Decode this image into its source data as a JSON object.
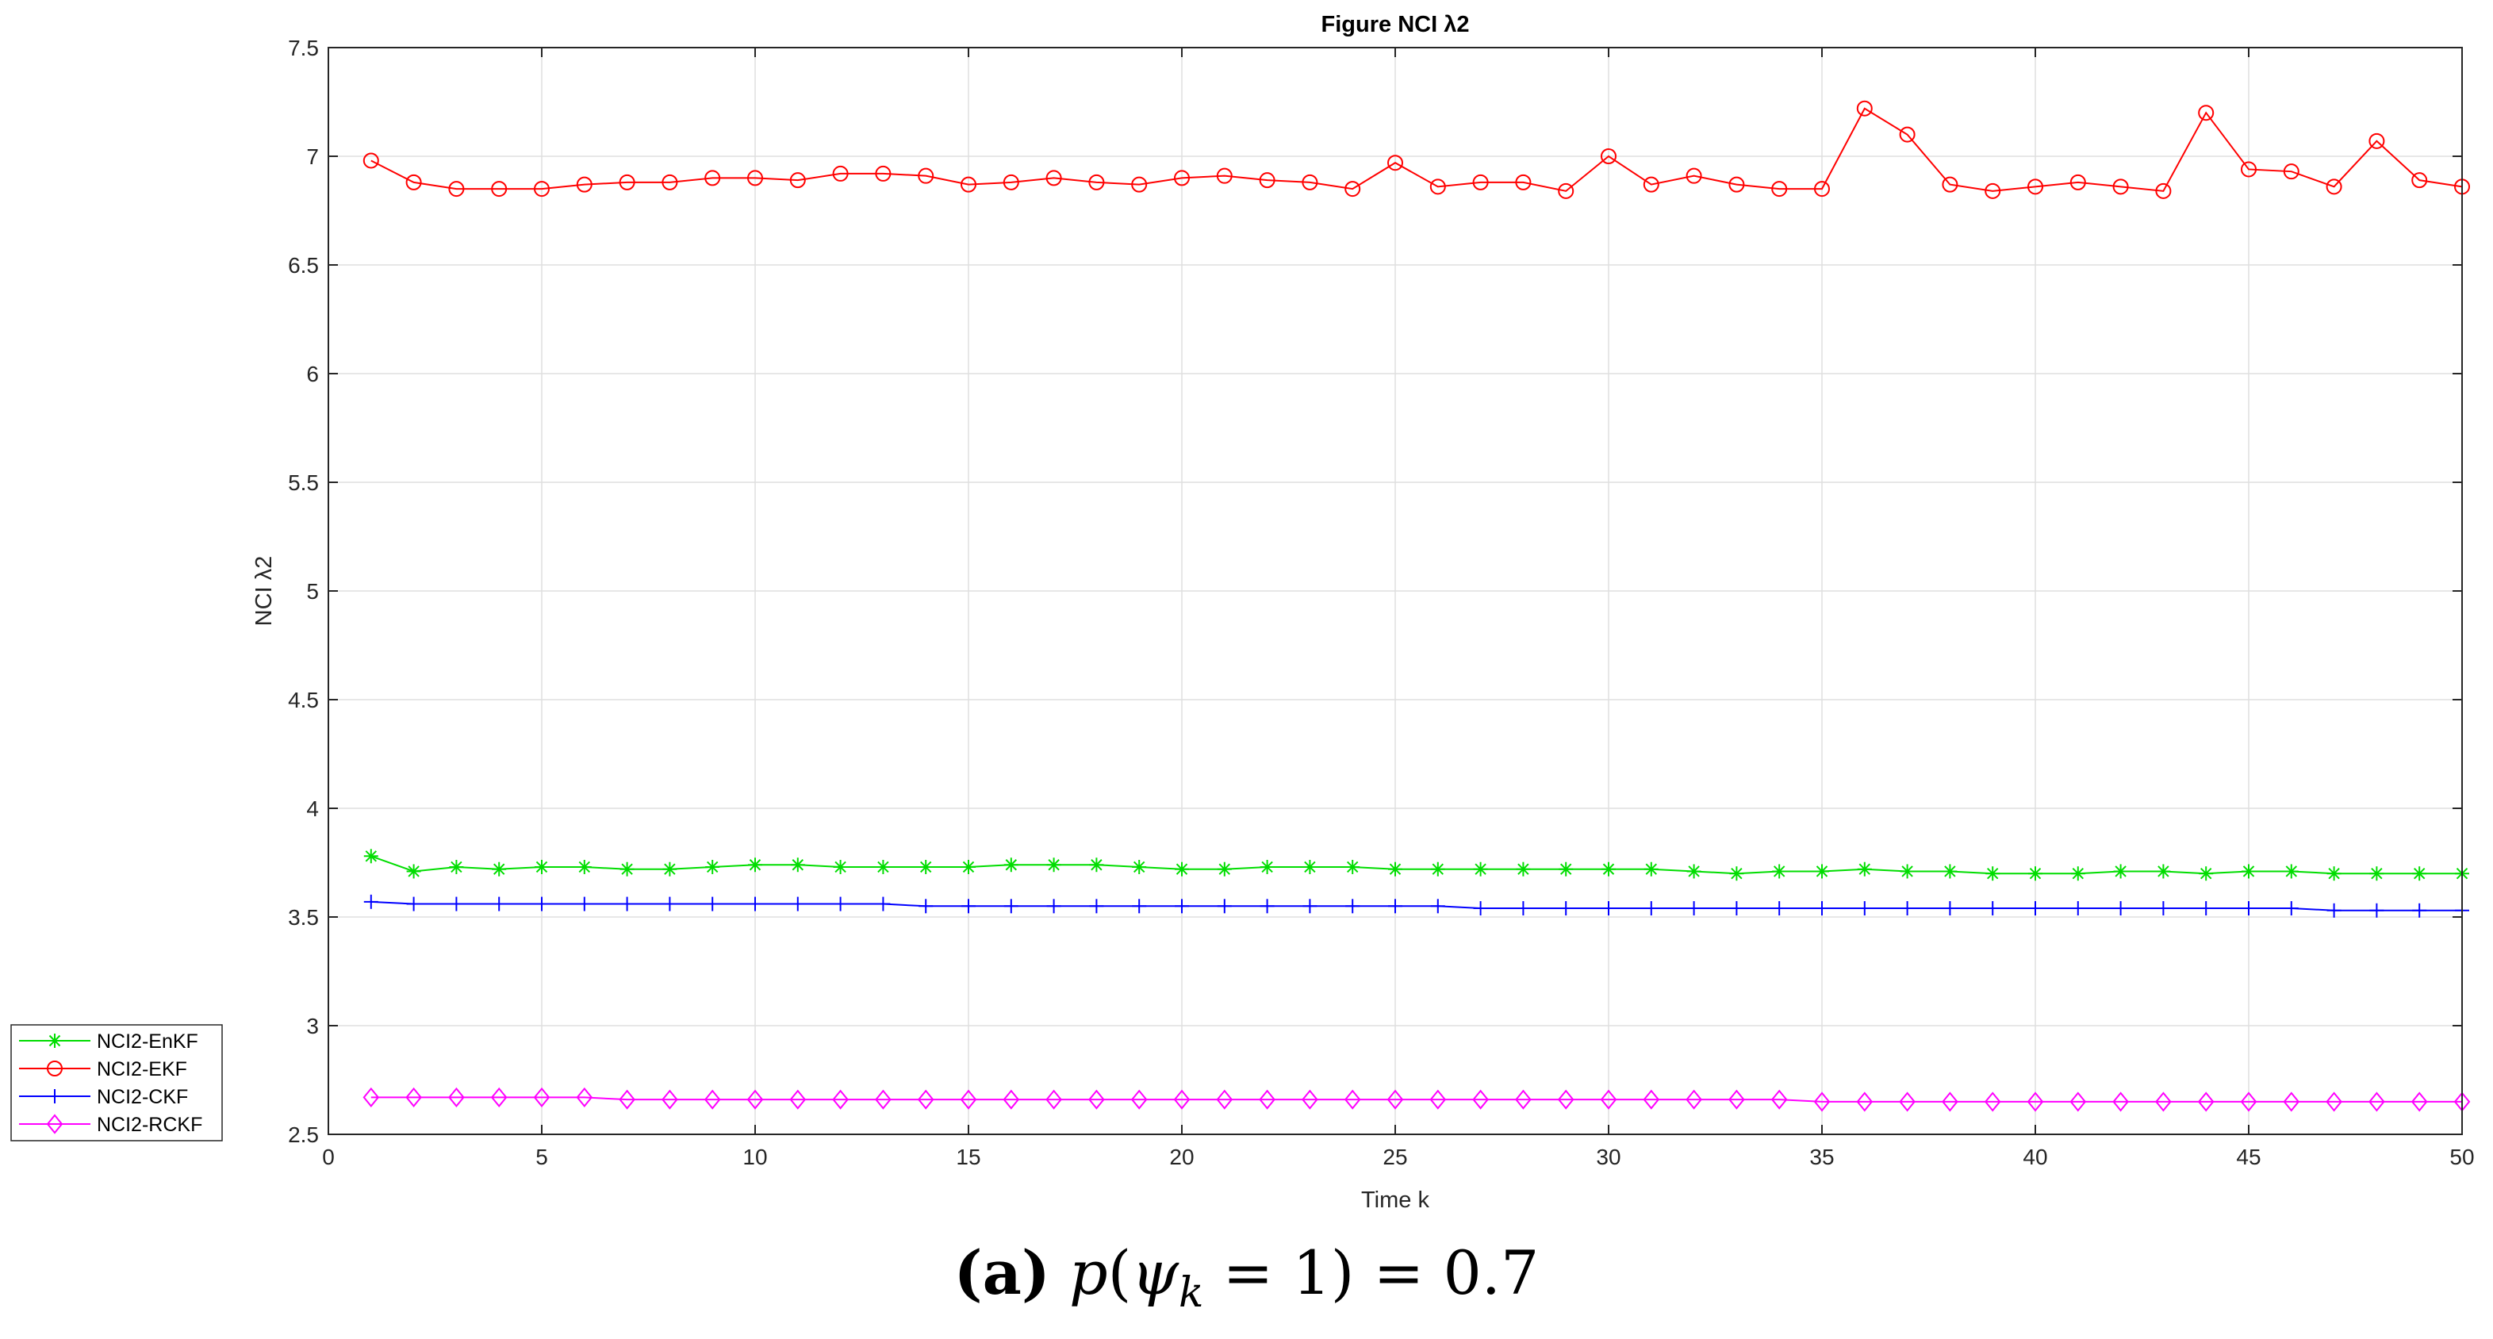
{
  "chart_data": {
    "type": "line",
    "title": "Figure NCI λ2",
    "xlabel": "Time k",
    "ylabel": "NCI λ2",
    "xlim": [
      0,
      50
    ],
    "ylim": [
      2.5,
      7.5
    ],
    "xticks": [
      0,
      5,
      10,
      15,
      20,
      25,
      30,
      35,
      40,
      45,
      50
    ],
    "yticks": [
      2.5,
      3,
      3.5,
      4,
      4.5,
      5,
      5.5,
      6,
      6.5,
      7,
      7.5
    ],
    "grid": true,
    "legend_position": "bottom-left-outside",
    "x": [
      1,
      2,
      3,
      4,
      5,
      6,
      7,
      8,
      9,
      10,
      11,
      12,
      13,
      14,
      15,
      16,
      17,
      18,
      19,
      20,
      21,
      22,
      23,
      24,
      25,
      26,
      27,
      28,
      29,
      30,
      31,
      32,
      33,
      34,
      35,
      36,
      37,
      38,
      39,
      40,
      41,
      42,
      43,
      44,
      45,
      46,
      47,
      48,
      49,
      50
    ],
    "series": [
      {
        "name": "NCI2-EnKF",
        "color": "#00dd00",
        "marker": "asterisk",
        "values": [
          3.78,
          3.71,
          3.73,
          3.72,
          3.73,
          3.73,
          3.72,
          3.72,
          3.73,
          3.74,
          3.74,
          3.73,
          3.73,
          3.73,
          3.73,
          3.74,
          3.74,
          3.74,
          3.73,
          3.72,
          3.72,
          3.73,
          3.73,
          3.73,
          3.72,
          3.72,
          3.72,
          3.72,
          3.72,
          3.72,
          3.72,
          3.71,
          3.7,
          3.71,
          3.71,
          3.72,
          3.71,
          3.71,
          3.7,
          3.7,
          3.7,
          3.71,
          3.71,
          3.7,
          3.71,
          3.71,
          3.7,
          3.7,
          3.7,
          3.7
        ]
      },
      {
        "name": "NCI2-EKF",
        "color": "#ff0000",
        "marker": "circle",
        "values": [
          6.98,
          6.88,
          6.85,
          6.85,
          6.85,
          6.87,
          6.88,
          6.88,
          6.9,
          6.9,
          6.89,
          6.92,
          6.92,
          6.91,
          6.87,
          6.88,
          6.9,
          6.88,
          6.87,
          6.9,
          6.91,
          6.89,
          6.88,
          6.85,
          6.97,
          6.86,
          6.88,
          6.88,
          6.84,
          7.0,
          6.87,
          6.91,
          6.87,
          6.85,
          6.85,
          7.22,
          7.1,
          6.87,
          6.84,
          6.86,
          6.88,
          6.86,
          6.84,
          7.2,
          6.94,
          6.93,
          6.86,
          7.07,
          6.89,
          6.86
        ]
      },
      {
        "name": "NCI2-CKF",
        "color": "#0000ff",
        "marker": "plus",
        "values": [
          3.57,
          3.56,
          3.56,
          3.56,
          3.56,
          3.56,
          3.56,
          3.56,
          3.56,
          3.56,
          3.56,
          3.56,
          3.56,
          3.55,
          3.55,
          3.55,
          3.55,
          3.55,
          3.55,
          3.55,
          3.55,
          3.55,
          3.55,
          3.55,
          3.55,
          3.55,
          3.54,
          3.54,
          3.54,
          3.54,
          3.54,
          3.54,
          3.54,
          3.54,
          3.54,
          3.54,
          3.54,
          3.54,
          3.54,
          3.54,
          3.54,
          3.54,
          3.54,
          3.54,
          3.54,
          3.54,
          3.53,
          3.53,
          3.53,
          3.53
        ]
      },
      {
        "name": "NCI2-RCKF",
        "color": "#ff00ff",
        "marker": "diamond",
        "values": [
          2.67,
          2.67,
          2.67,
          2.67,
          2.67,
          2.67,
          2.66,
          2.66,
          2.66,
          2.66,
          2.66,
          2.66,
          2.66,
          2.66,
          2.66,
          2.66,
          2.66,
          2.66,
          2.66,
          2.66,
          2.66,
          2.66,
          2.66,
          2.66,
          2.66,
          2.66,
          2.66,
          2.66,
          2.66,
          2.66,
          2.66,
          2.66,
          2.66,
          2.66,
          2.65,
          2.65,
          2.65,
          2.65,
          2.65,
          2.65,
          2.65,
          2.65,
          2.65,
          2.65,
          2.65,
          2.65,
          2.65,
          2.65,
          2.65,
          2.65
        ]
      }
    ]
  },
  "caption": {
    "label": "(a)",
    "formula_p": "p",
    "formula_open": "(",
    "formula_psi": "ψ",
    "formula_sub": "k",
    "formula_rest": " = 1) = 0.7"
  }
}
